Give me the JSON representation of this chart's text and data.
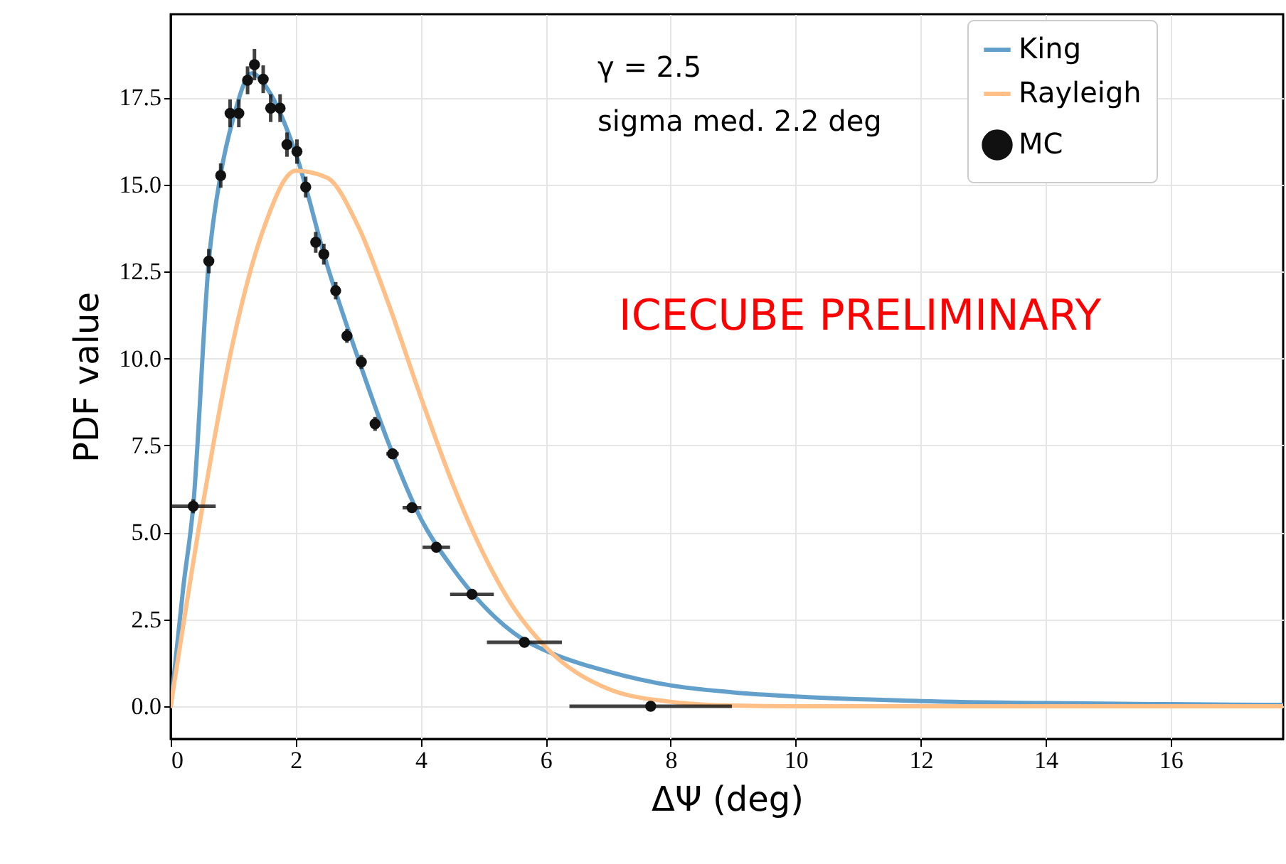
{
  "chart_data": {
    "type": "line",
    "xlabel": "ΔΨ (deg)",
    "ylabel": "PDF value",
    "annotations": [
      "γ = 2.5",
      "sigma med. 2.2 deg",
      "ICECUBE PRELIMINARY"
    ],
    "xlim": [
      0,
      17.8
    ],
    "ylim": [
      -0.94,
      19.9
    ],
    "xticks": [
      0,
      2,
      4,
      6,
      8,
      10,
      12,
      14,
      16
    ],
    "yticks": [
      {
        "value": 0,
        "label": "0.0"
      },
      {
        "value": 2.5,
        "label": "2.5"
      },
      {
        "value": 5,
        "label": "5.0"
      },
      {
        "value": 7.5,
        "label": "7.5"
      },
      {
        "value": 10,
        "label": "10.0"
      },
      {
        "value": 12.5,
        "label": "12.5"
      },
      {
        "value": 15,
        "label": "15.0"
      },
      {
        "value": 17.5,
        "label": "17.5"
      }
    ],
    "grid": true,
    "legend": "top right",
    "series": [
      {
        "name": "King",
        "color": "#62a0cb",
        "x": [
          0,
          0.1,
          0.2,
          0.36,
          0.61,
          0.8,
          1.0,
          1.3,
          1.6,
          2.0,
          2.5,
          3.0,
          3.5,
          4.0,
          4.5,
          5.0,
          5.66,
          6.0,
          7.0,
          8.0,
          9.0,
          10.0,
          12.0,
          14.0,
          16.0,
          17.8
        ],
        "values": [
          0,
          1.7,
          3.4,
          5.75,
          12.8,
          15.3,
          16.9,
          18.2,
          17.6,
          15.9,
          12.7,
          10.0,
          7.5,
          5.4,
          4.0,
          2.9,
          1.9,
          1.6,
          1.0,
          0.6,
          0.4,
          0.28,
          0.15,
          0.09,
          0.06,
          0.04
        ]
      },
      {
        "name": "Rayleigh",
        "color": "#ffbf86",
        "x": [
          0,
          0.5,
          1.0,
          1.5,
          2.0,
          2.5,
          3.0,
          3.5,
          4.0,
          4.5,
          5.0,
          5.5,
          6.0,
          7.0,
          8.0,
          9.0,
          10.0,
          17.8
        ],
        "values": [
          0,
          5.65,
          10.5,
          13.8,
          15.4,
          15.2,
          13.8,
          11.5,
          8.9,
          6.45,
          4.4,
          2.8,
          1.7,
          0.5,
          0.13,
          0.02,
          0,
          0
        ]
      },
      {
        "name": "MC",
        "type": "scatter",
        "marker": "circle",
        "color": "#111111",
        "x": [
          0.36,
          0.61,
          0.8,
          0.95,
          1.09,
          1.23,
          1.34,
          1.48,
          1.6,
          1.75,
          1.86,
          2.02,
          2.16,
          2.32,
          2.45,
          2.64,
          2.82,
          3.05,
          3.27,
          3.55,
          3.86,
          4.25,
          4.82,
          5.66,
          7.68
        ],
        "values": [
          5.75,
          12.8,
          15.26,
          17.05,
          17.05,
          18.0,
          18.45,
          18.03,
          17.2,
          17.2,
          16.15,
          15.95,
          14.93,
          13.34,
          13.0,
          11.95,
          10.65,
          9.9,
          8.12,
          7.26,
          5.71,
          4.57,
          3.22,
          1.84,
          0
        ],
        "errors": [
          0.2,
          0.35,
          0.35,
          0.4,
          0.4,
          0.4,
          0.45,
          0.4,
          0.4,
          0.4,
          0.35,
          0.35,
          0.3,
          0.3,
          0.3,
          0.25,
          0.2,
          0.2,
          0.2,
          0.15,
          0.1,
          0.1,
          0.1,
          0.08,
          0.05
        ],
        "xerrors": [
          0.36,
          0.05,
          0.05,
          0.05,
          0.05,
          0.05,
          0.05,
          0.05,
          0.05,
          0.05,
          0.05,
          0.05,
          0.05,
          0.05,
          0.05,
          0.07,
          0.07,
          0.08,
          0.08,
          0.1,
          0.15,
          0.22,
          0.35,
          0.6,
          1.3
        ]
      }
    ]
  }
}
